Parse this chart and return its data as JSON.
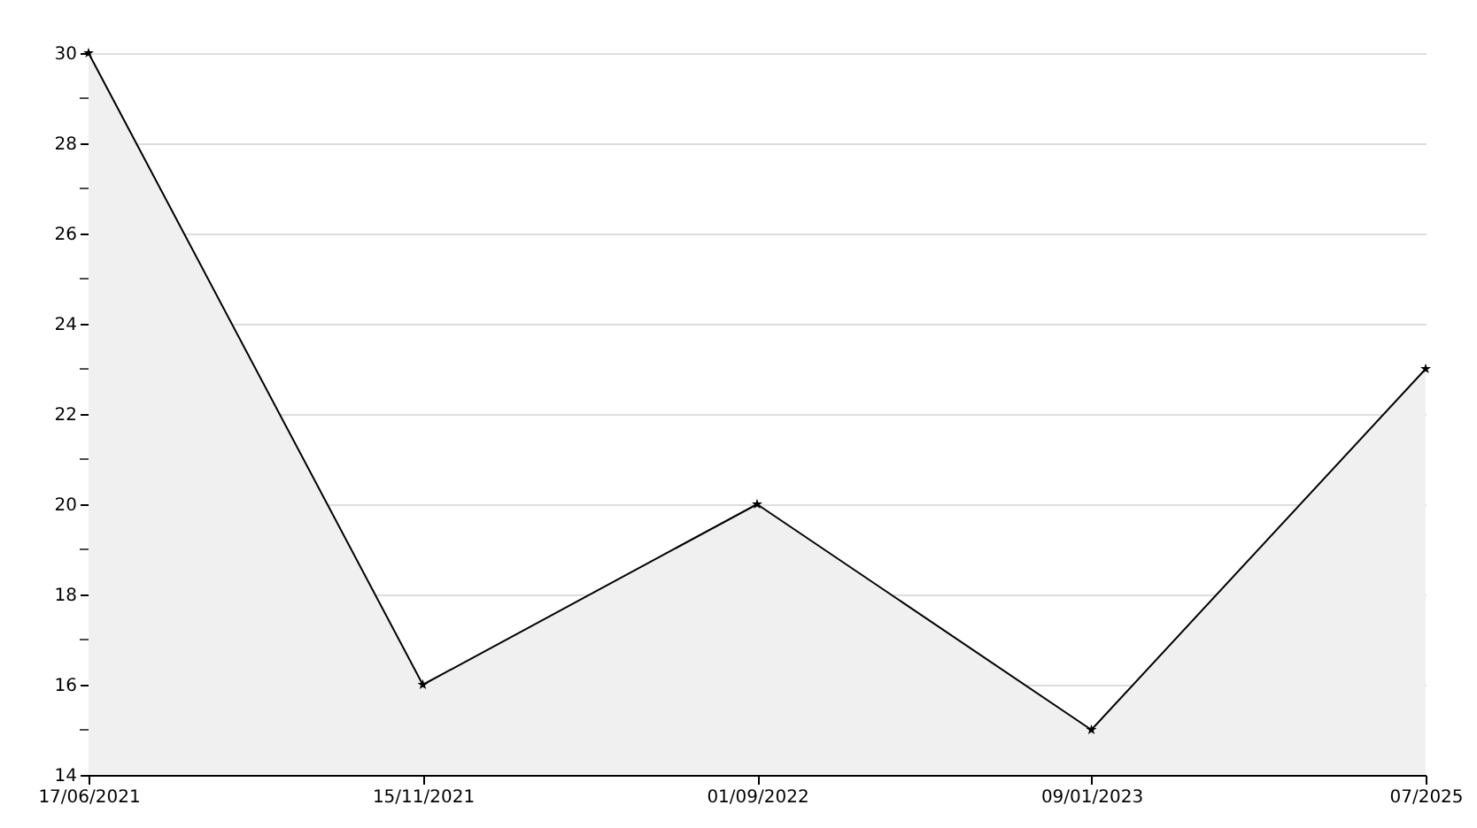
{
  "chart_data": {
    "type": "area",
    "categories": [
      "17/06/2021",
      "15/11/2021",
      "01/09/2022",
      "09/01/2023",
      "07/2025"
    ],
    "series": [
      {
        "color": "#000000",
        "values": [
          30,
          16,
          20,
          15,
          23
        ]
      }
    ],
    "ylim": [
      14,
      30
    ],
    "yticks": [
      14,
      {
        "value": 15,
        "label": null
      },
      16,
      {
        "value": 17,
        "label": null
      },
      18,
      {
        "value": 19,
        "label": null
      },
      20,
      {
        "value": 21,
        "label": null
      },
      22,
      {
        "value": 23,
        "label": null
      },
      24,
      {
        "value": 25,
        "label": null
      },
      26,
      {
        "value": 27,
        "label": null
      },
      28,
      {
        "value": 29,
        "label": null
      },
      30
    ],
    "grid": "y",
    "marker": "star",
    "line_style": "solid"
  }
}
